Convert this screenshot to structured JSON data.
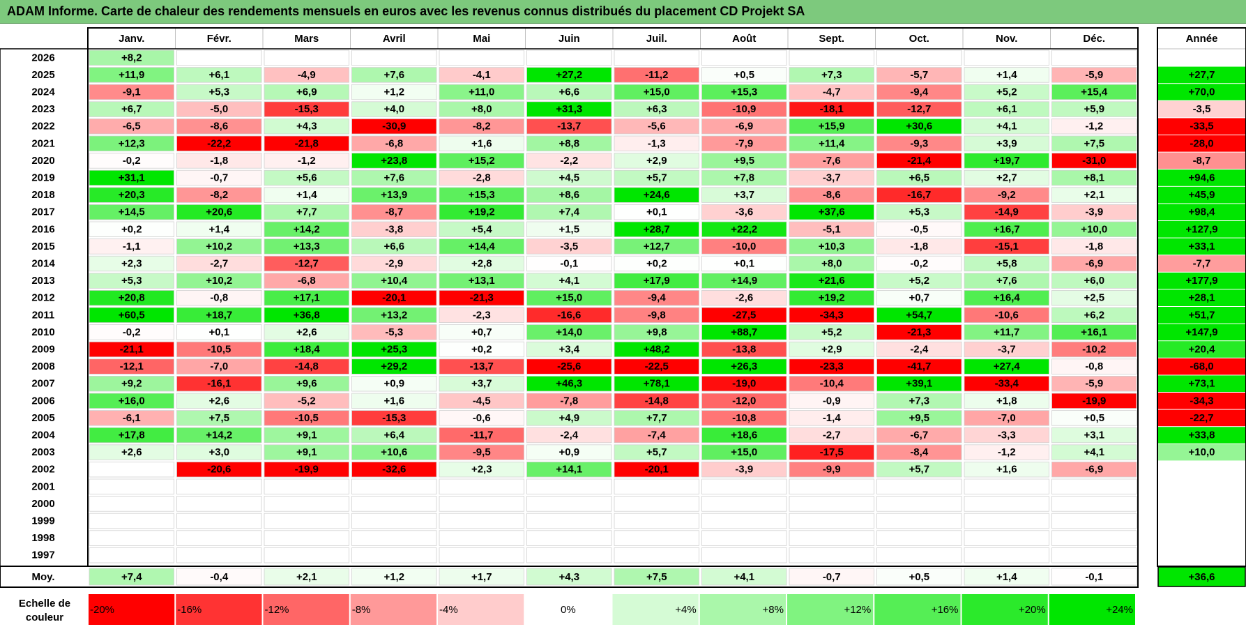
{
  "title": "ADAM Informe. Carte de chaleur des rendements mensuels en euros avec les revenus connus distribués du placement CD Projekt SA",
  "chart_data": {
    "type": "heatmap",
    "title": "ADAM Informe. Carte de chaleur des rendements mensuels en euros avec les revenus connus distribués du placement CD Projekt SA",
    "months": [
      "Janv.",
      "Févr.",
      "Mars",
      "Avril",
      "Mai",
      "Juin",
      "Juil.",
      "Août",
      "Sept.",
      "Oct.",
      "Nov.",
      "Déc."
    ],
    "annual_label": "Année",
    "years": [
      "2026",
      "2025",
      "2024",
      "2023",
      "2022",
      "2021",
      "2020",
      "2019",
      "2018",
      "2017",
      "2016",
      "2015",
      "2014",
      "2013",
      "2012",
      "2011",
      "2010",
      "2009",
      "2008",
      "2007",
      "2006",
      "2005",
      "2004",
      "2003",
      "2002",
      "2001",
      "2000",
      "1999",
      "1998",
      "1997"
    ],
    "values": [
      [
        "+8,2",
        "",
        "",
        "",
        "",
        "",
        "",
        "",
        "",
        "",
        "",
        ""
      ],
      [
        "+11,9",
        "+6,1",
        "-4,9",
        "+7,6",
        "-4,1",
        "+27,2",
        "-11,2",
        "+0,5",
        "+7,3",
        "-5,7",
        "+1,4",
        "-5,9"
      ],
      [
        "-9,1",
        "+5,3",
        "+6,9",
        "+1,2",
        "+11,0",
        "+6,6",
        "+15,0",
        "+15,3",
        "-4,7",
        "-9,4",
        "+5,2",
        "+15,4"
      ],
      [
        "+6,7",
        "-5,0",
        "-15,3",
        "+4,0",
        "+8,0",
        "+31,3",
        "+6,3",
        "-10,9",
        "-18,1",
        "-12,7",
        "+6,1",
        "+5,9"
      ],
      [
        "-6,5",
        "-8,6",
        "+4,3",
        "-30,9",
        "-8,2",
        "-13,7",
        "-5,6",
        "-6,9",
        "+15,9",
        "+30,6",
        "+4,1",
        "-1,2"
      ],
      [
        "+12,3",
        "-22,2",
        "-21,8",
        "-6,8",
        "+1,6",
        "+8,8",
        "-1,3",
        "-7,9",
        "+11,4",
        "-9,3",
        "+3,9",
        "+7,5"
      ],
      [
        "-0,2",
        "-1,8",
        "-1,2",
        "+23,8",
        "+15,2",
        "-2,2",
        "+2,9",
        "+9,5",
        "-7,6",
        "-21,4",
        "+19,7",
        "-31,0"
      ],
      [
        "+31,1",
        "-0,7",
        "+5,6",
        "+7,6",
        "-2,8",
        "+4,5",
        "+5,7",
        "+7,8",
        "-3,7",
        "+6,5",
        "+2,7",
        "+8,1"
      ],
      [
        "+20,3",
        "-8,2",
        "+1,4",
        "+13,9",
        "+15,3",
        "+8,6",
        "+24,6",
        "+3,7",
        "-8,6",
        "-16,7",
        "-9,2",
        "+2,1"
      ],
      [
        "+14,5",
        "+20,6",
        "+7,7",
        "-8,7",
        "+19,2",
        "+7,4",
        "+0,1",
        "-3,6",
        "+37,6",
        "+5,3",
        "-14,9",
        "-3,9"
      ],
      [
        "+0,2",
        "+1,4",
        "+14,2",
        "-3,8",
        "+5,4",
        "+1,5",
        "+28,7",
        "+22,2",
        "-5,1",
        "-0,5",
        "+16,7",
        "+10,0"
      ],
      [
        "-1,1",
        "+10,2",
        "+13,3",
        "+6,6",
        "+14,4",
        "-3,5",
        "+12,7",
        "-10,0",
        "+10,3",
        "-1,8",
        "-15,1",
        "-1,8"
      ],
      [
        "+2,3",
        "-2,7",
        "-12,7",
        "-2,9",
        "+2,8",
        "-0,1",
        "+0,2",
        "+0,1",
        "+8,0",
        "-0,2",
        "+5,8",
        "-6,9"
      ],
      [
        "+5,3",
        "+10,2",
        "-6,8",
        "+10,4",
        "+13,1",
        "+4,1",
        "+17,9",
        "+14,9",
        "+21,6",
        "+5,2",
        "+7,6",
        "+6,0"
      ],
      [
        "+20,8",
        "-0,8",
        "+17,1",
        "-20,1",
        "-21,3",
        "+15,0",
        "-9,4",
        "-2,6",
        "+19,2",
        "+0,7",
        "+16,4",
        "+2,5"
      ],
      [
        "+60,5",
        "+18,7",
        "+36,8",
        "+13,2",
        "-2,3",
        "-16,6",
        "-9,8",
        "-27,5",
        "-34,3",
        "+54,7",
        "-10,6",
        "+6,2"
      ],
      [
        "-0,2",
        "+0,1",
        "+2,6",
        "-5,3",
        "+0,7",
        "+14,0",
        "+9,8",
        "+88,7",
        "+5,2",
        "-21,3",
        "+11,7",
        "+16,1"
      ],
      [
        "-21,1",
        "-10,5",
        "+18,4",
        "+25,3",
        "+0,2",
        "+3,4",
        "+48,2",
        "-13,8",
        "+2,9",
        "-2,4",
        "-3,7",
        "-10,2"
      ],
      [
        "-12,1",
        "-7,0",
        "-14,8",
        "+29,2",
        "-13,7",
        "-25,6",
        "-22,5",
        "+26,3",
        "-23,3",
        "-41,7",
        "+27,4",
        "-0,8"
      ],
      [
        "+9,2",
        "-16,1",
        "+9,6",
        "+0,9",
        "+3,7",
        "+46,3",
        "+78,1",
        "-19,0",
        "-10,4",
        "+39,1",
        "-33,4",
        "-5,9"
      ],
      [
        "+16,0",
        "+2,6",
        "-5,2",
        "+1,6",
        "-4,5",
        "-7,8",
        "-14,8",
        "-12,0",
        "-0,9",
        "+7,3",
        "+1,8",
        "-19,9"
      ],
      [
        "-6,1",
        "+7,5",
        "-10,5",
        "-15,3",
        "-0,6",
        "+4,9",
        "+7,7",
        "-10,8",
        "-1,4",
        "+9,5",
        "-7,0",
        "+0,5"
      ],
      [
        "+17,8",
        "+14,2",
        "+9,1",
        "+6,4",
        "-11,7",
        "-2,4",
        "-7,4",
        "+18,6",
        "-2,7",
        "-6,7",
        "-3,3",
        "+3,1"
      ],
      [
        "+2,6",
        "+3,0",
        "+9,1",
        "+10,6",
        "-9,5",
        "+0,9",
        "+5,7",
        "+15,0",
        "-17,5",
        "-8,4",
        "-1,2",
        "+4,1"
      ],
      [
        "",
        "-20,6",
        "-19,9",
        "-32,6",
        "+2,3",
        "+14,1",
        "-20,1",
        "-3,9",
        "-9,9",
        "+5,7",
        "+1,6",
        "-6,9"
      ],
      [
        "",
        "",
        "",
        "",
        "",
        "",
        "",
        "",
        "",
        "",
        "",
        ""
      ],
      [
        "",
        "",
        "",
        "",
        "",
        "",
        "",
        "",
        "",
        "",
        "",
        ""
      ],
      [
        "",
        "",
        "",
        "",
        "",
        "",
        "",
        "",
        "",
        "",
        "",
        ""
      ],
      [
        "",
        "",
        "",
        "",
        "",
        "",
        "",
        "",
        "",
        "",
        "",
        ""
      ],
      [
        "",
        "",
        "",
        "",
        "",
        "",
        "",
        "",
        "",
        "",
        "",
        ""
      ]
    ],
    "annual": [
      "",
      "+27,7",
      "+70,0",
      "-3,5",
      "-33,5",
      "-28,0",
      "-8,7",
      "+94,6",
      "+45,9",
      "+98,4",
      "+127,9",
      "+33,1",
      "-7,7",
      "+177,9",
      "+28,1",
      "+51,7",
      "+147,9",
      "+20,4",
      "-68,0",
      "+73,1",
      "-34,3",
      "-22,7",
      "+33,8",
      "+10,0",
      "",
      "",
      "",
      "",
      "",
      ""
    ],
    "average_label": "Moy.",
    "averages": [
      "+7,4",
      "-0,4",
      "+2,1",
      "+1,2",
      "+1,7",
      "+4,3",
      "+7,5",
      "+4,1",
      "-0,7",
      "+0,5",
      "+1,4",
      "-0,1"
    ],
    "average_annual": "+36,6",
    "scale_label": [
      "Echelle de",
      "couleur"
    ],
    "scale_labels": [
      "-20%",
      "-16%",
      "-12%",
      "-8%",
      "-4%",
      "0%",
      "+4%",
      "+8%",
      "+12%",
      "+16%",
      "+20%",
      "+24%"
    ],
    "scale_values": [
      -20,
      -16,
      -12,
      -8,
      -4,
      0,
      4,
      8,
      12,
      16,
      20,
      24
    ],
    "colors": {
      "neg_max": "#ff0000",
      "pos_max": "#00e000",
      "neutral": "#ffffff",
      "title_bg": "#7dc97d"
    }
  }
}
